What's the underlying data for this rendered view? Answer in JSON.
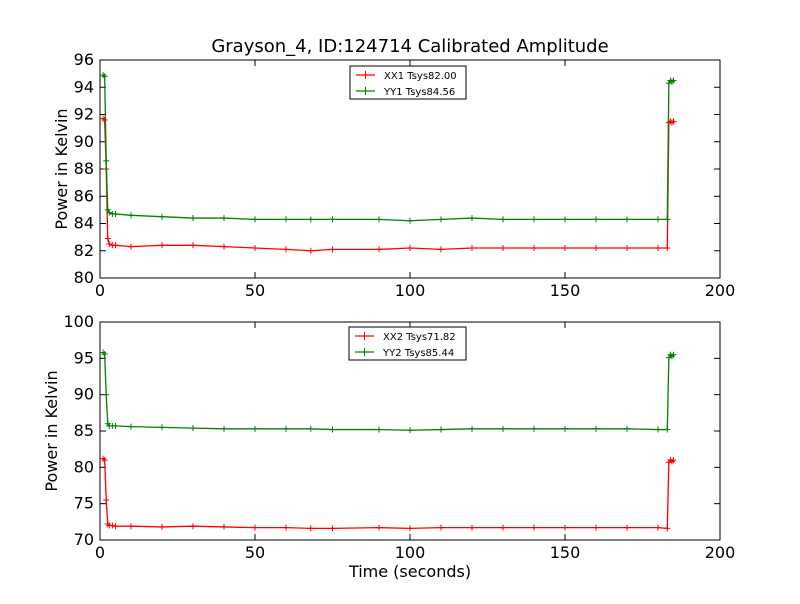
{
  "chart_data": [
    {
      "type": "line",
      "title": "Grayson_4, ID:124714 Calibrated Amplitude",
      "xlabel": "",
      "ylabel": "Power in Kelvin",
      "xlim": [
        0,
        200
      ],
      "ylim": [
        80,
        96
      ],
      "xticks": [
        0,
        50,
        100,
        150,
        200
      ],
      "yticks": [
        80,
        82,
        84,
        86,
        88,
        90,
        92,
        94,
        96
      ],
      "legend_position": "top-center",
      "grid": false,
      "series": [
        {
          "name": "XX1 Tsys82.00",
          "color": "#ff0000",
          "x": [
            1,
            1.5,
            2,
            2.5,
            3,
            4,
            5,
            10,
            20,
            30,
            40,
            50,
            60,
            68,
            75,
            90,
            100,
            110,
            120,
            130,
            140,
            150,
            160,
            170,
            180,
            183,
            183.5,
            184,
            184.5,
            185
          ],
          "values": [
            91.7,
            91.6,
            88.0,
            82.9,
            82.5,
            82.4,
            82.4,
            82.3,
            82.4,
            82.4,
            82.3,
            82.2,
            82.1,
            82.0,
            82.1,
            82.1,
            82.2,
            82.1,
            82.2,
            82.2,
            82.2,
            82.2,
            82.2,
            82.2,
            82.2,
            82.2,
            91.4,
            91.5,
            91.4,
            91.5
          ]
        },
        {
          "name": "YY1 Tsys84.56",
          "color": "#008000",
          "x": [
            1,
            1.5,
            2,
            2.5,
            3,
            4,
            5,
            10,
            20,
            30,
            40,
            50,
            60,
            68,
            75,
            90,
            100,
            110,
            120,
            130,
            140,
            150,
            160,
            170,
            180,
            183,
            183.5,
            184,
            184.5,
            185
          ],
          "values": [
            94.9,
            94.8,
            88.6,
            85.0,
            84.8,
            84.7,
            84.7,
            84.6,
            84.5,
            84.4,
            84.4,
            84.3,
            84.3,
            84.3,
            84.3,
            84.3,
            84.2,
            84.3,
            84.4,
            84.3,
            84.3,
            84.3,
            84.3,
            84.3,
            84.3,
            84.3,
            94.3,
            94.5,
            94.4,
            94.5
          ]
        }
      ]
    },
    {
      "type": "line",
      "title": "",
      "xlabel": "Time (seconds)",
      "ylabel": "Power in Kelvin",
      "xlim": [
        0,
        200
      ],
      "ylim": [
        70,
        100
      ],
      "xticks": [
        0,
        50,
        100,
        150,
        200
      ],
      "yticks": [
        70,
        75,
        80,
        85,
        90,
        95,
        100
      ],
      "legend_position": "top-center",
      "grid": false,
      "series": [
        {
          "name": "XX2 Tsys71.82",
          "color": "#ff0000",
          "x": [
            1,
            1.5,
            2,
            2.5,
            3,
            4,
            5,
            10,
            20,
            30,
            40,
            50,
            60,
            68,
            75,
            90,
            100,
            110,
            120,
            130,
            140,
            150,
            160,
            170,
            180,
            183,
            183.5,
            184,
            184.5,
            185
          ],
          "values": [
            81.2,
            81.0,
            75.5,
            72.2,
            72.0,
            72.0,
            71.9,
            71.9,
            71.8,
            71.9,
            71.8,
            71.7,
            71.7,
            71.6,
            71.6,
            71.7,
            71.6,
            71.7,
            71.7,
            71.7,
            71.7,
            71.7,
            71.7,
            71.7,
            71.7,
            71.6,
            80.7,
            81.0,
            80.8,
            81.0
          ]
        },
        {
          "name": "YY2 Tsys85.44",
          "color": "#008000",
          "x": [
            1,
            1.5,
            2,
            2.5,
            3,
            4,
            5,
            10,
            20,
            30,
            40,
            50,
            60,
            68,
            75,
            90,
            100,
            110,
            120,
            130,
            140,
            150,
            160,
            170,
            180,
            183,
            183.5,
            184,
            184.5,
            185
          ],
          "values": [
            95.8,
            95.6,
            90.0,
            86.0,
            85.7,
            85.7,
            85.7,
            85.6,
            85.5,
            85.4,
            85.3,
            85.3,
            85.3,
            85.3,
            85.2,
            85.2,
            85.1,
            85.2,
            85.3,
            85.3,
            85.3,
            85.3,
            85.3,
            85.3,
            85.2,
            85.2,
            95.1,
            95.5,
            95.3,
            95.5
          ]
        }
      ]
    }
  ]
}
